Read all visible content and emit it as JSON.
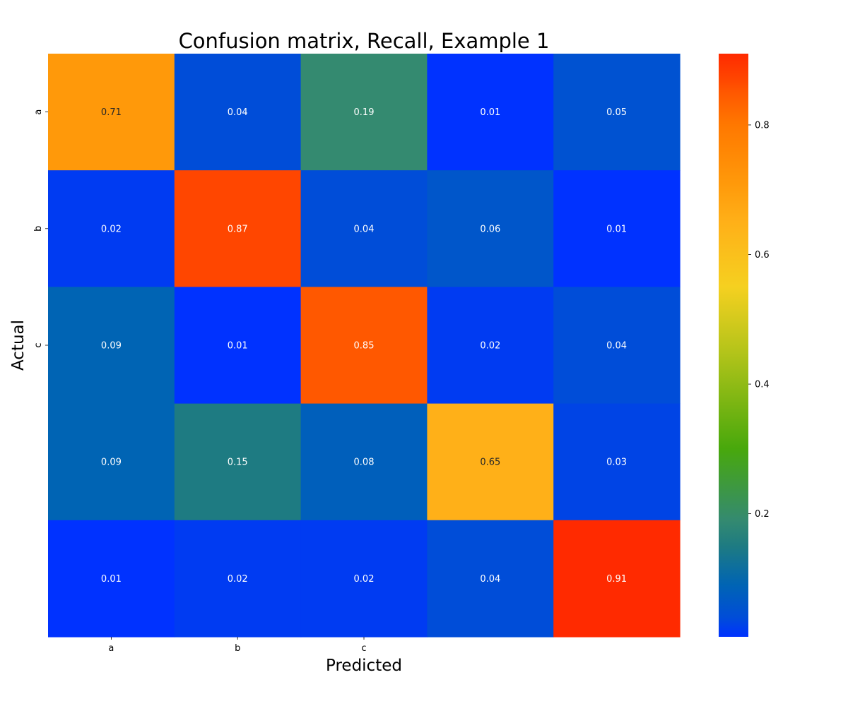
{
  "chart_data": {
    "type": "heatmap",
    "title": "Confusion matrix, Recall, Example 1",
    "xlabel": "Predicted",
    "ylabel": "Actual",
    "x_tick_labels": [
      "a",
      "b",
      "c",
      "",
      ""
    ],
    "y_tick_labels": [
      "a",
      "b",
      "c",
      "",
      ""
    ],
    "values": [
      [
        0.71,
        0.04,
        0.19,
        0.01,
        0.05
      ],
      [
        0.02,
        0.87,
        0.04,
        0.06,
        0.01
      ],
      [
        0.09,
        0.01,
        0.85,
        0.02,
        0.04
      ],
      [
        0.09,
        0.15,
        0.08,
        0.65,
        0.03
      ],
      [
        0.01,
        0.02,
        0.02,
        0.04,
        0.91
      ]
    ],
    "annotation_labels": [
      [
        "0.71",
        "0.04",
        "0.19",
        "0.01",
        "0.05"
      ],
      [
        "0.02",
        "0.87",
        "0.04",
        "0.06",
        "0.01"
      ],
      [
        "0.09",
        "0.01",
        "0.85",
        "0.02",
        "0.04"
      ],
      [
        "0.09",
        "0.15",
        "0.08",
        "0.65",
        "0.03"
      ],
      [
        "0.01",
        "0.02",
        "0.02",
        "0.04",
        "0.91"
      ]
    ],
    "colorbar": {
      "range": [
        0.01,
        0.91
      ],
      "tick_values": [
        0.2,
        0.4,
        0.6,
        0.8
      ],
      "tick_labels": [
        "0.2",
        "0.4",
        "0.6",
        "0.8"
      ]
    },
    "colormap": [
      {
        "v": 0.01,
        "color": "#0032ff"
      },
      {
        "v": 0.04,
        "color": "#004dd8"
      },
      {
        "v": 0.09,
        "color": "#0064b4"
      },
      {
        "v": 0.15,
        "color": "#1e7b82"
      },
      {
        "v": 0.19,
        "color": "#348a70"
      },
      {
        "v": 0.3,
        "color": "#48a80c"
      },
      {
        "v": 0.45,
        "color": "#b4c41a"
      },
      {
        "v": 0.55,
        "color": "#f5d020"
      },
      {
        "v": 0.65,
        "color": "#ffb018"
      },
      {
        "v": 0.71,
        "color": "#ff990a"
      },
      {
        "v": 0.8,
        "color": "#ff7800"
      },
      {
        "v": 0.85,
        "color": "#ff5800"
      },
      {
        "v": 0.87,
        "color": "#ff4600"
      },
      {
        "v": 0.91,
        "color": "#ff2a00"
      }
    ],
    "annotation_colors": {
      "light": "#ffffff",
      "dark": "#262626"
    },
    "grid": false,
    "legend": "none"
  }
}
